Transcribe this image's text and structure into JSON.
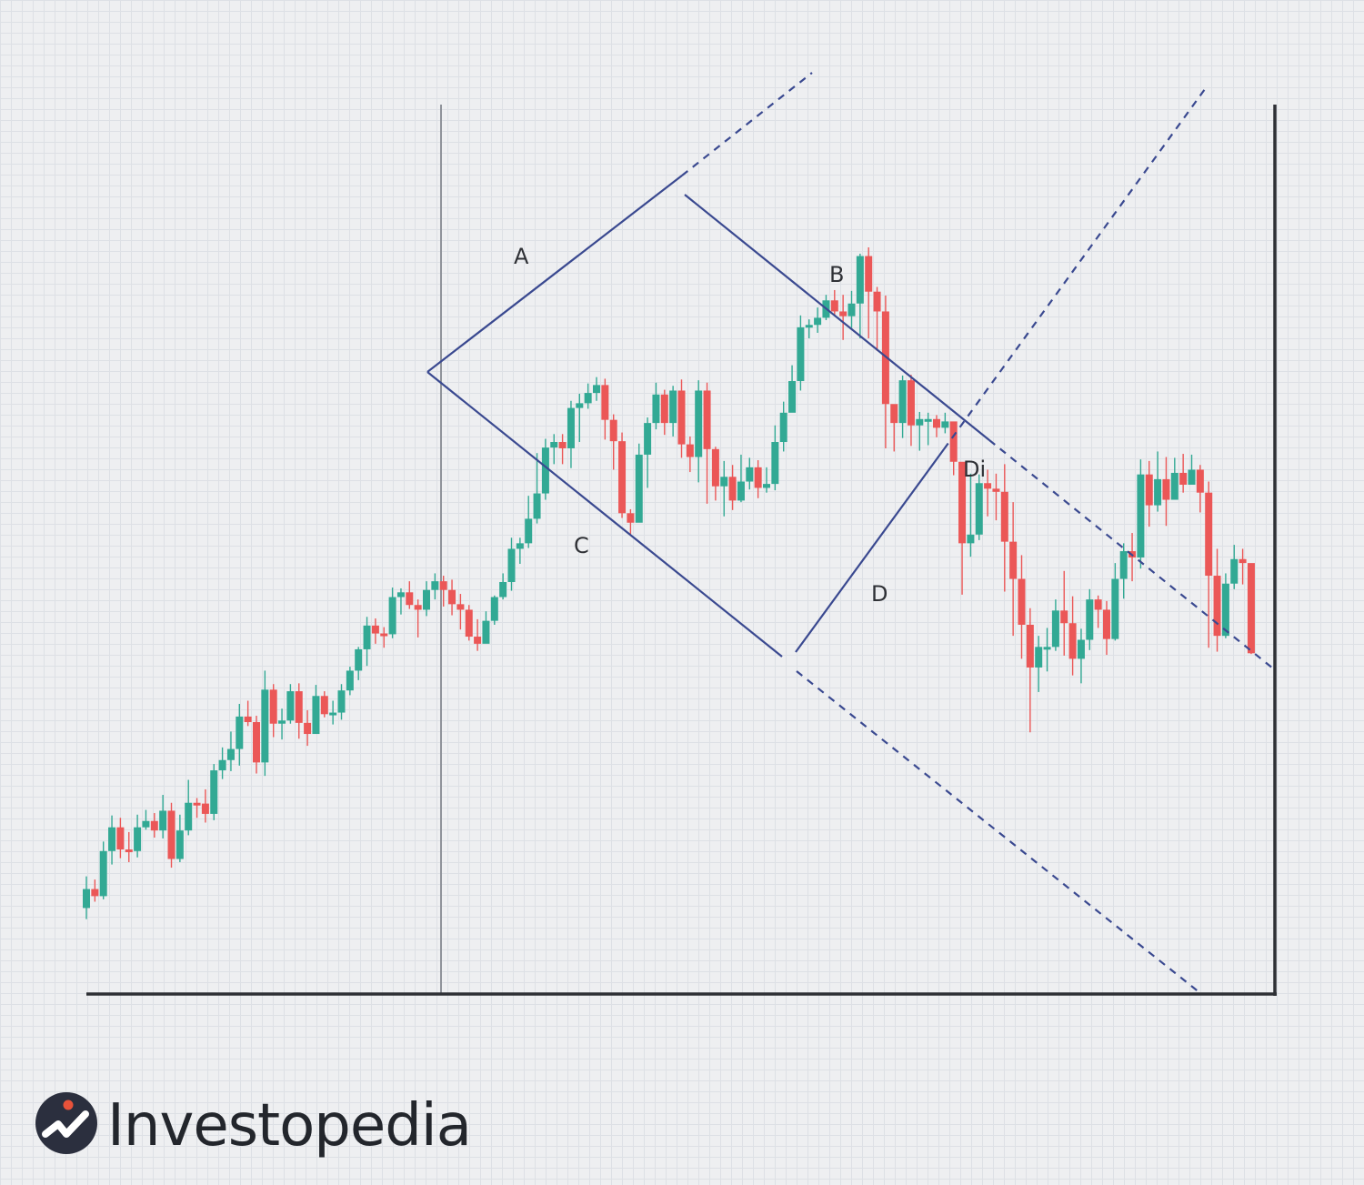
{
  "brand": {
    "name": "Investopedia",
    "logo_icon": "investopedia-logo-icon"
  },
  "colors": {
    "bullish": "#32a994",
    "bearish": "#eb5757",
    "pattern_lines": "#3a4990",
    "axes": "#2e3035",
    "divider": "#8f939a",
    "background": "#eeeff1",
    "grid": "#dde0e5"
  },
  "chart_data": {
    "type": "candlestick",
    "title": "",
    "xlabel": "",
    "ylabel": "",
    "grid": true,
    "candle_count": 108,
    "ylim": [
      0,
      100
    ],
    "candles": [
      [
        8.8,
        11.2,
        12.8,
        7.4
      ],
      [
        11.2,
        10.3,
        12.4,
        9.6
      ],
      [
        10.3,
        16.0,
        17.2,
        9.9
      ],
      [
        16.0,
        19.0,
        20.5,
        14.3
      ],
      [
        19.0,
        16.2,
        20.2,
        15.1
      ],
      [
        16.2,
        16.0,
        18.4,
        14.6
      ],
      [
        16.0,
        19.0,
        20.6,
        15.2
      ],
      [
        19.0,
        19.8,
        21.2,
        18.7
      ],
      [
        19.8,
        18.6,
        20.8,
        17.7
      ],
      [
        18.6,
        21.1,
        23.1,
        17.6
      ],
      [
        21.1,
        15.0,
        22.1,
        13.9
      ],
      [
        15.0,
        18.6,
        20.6,
        14.6
      ],
      [
        18.6,
        22.1,
        25.0,
        18.0
      ],
      [
        22.1,
        22.0,
        22.7,
        20.2
      ],
      [
        22.0,
        20.7,
        23.8,
        19.6
      ],
      [
        20.7,
        26.2,
        27.0,
        19.9
      ],
      [
        26.2,
        27.5,
        29.1,
        25.1
      ],
      [
        27.5,
        28.9,
        31.1,
        26.1
      ],
      [
        28.9,
        33.0,
        34.6,
        26.8
      ],
      [
        33.0,
        32.3,
        35.0,
        31.8
      ],
      [
        32.3,
        27.2,
        33.1,
        25.8
      ],
      [
        27.2,
        36.4,
        38.8,
        25.5
      ],
      [
        36.4,
        32.1,
        37.1,
        30.4
      ],
      [
        32.1,
        32.5,
        34.0,
        30.1
      ],
      [
        32.5,
        36.2,
        37.1,
        32.1
      ],
      [
        36.2,
        32.2,
        37.2,
        30.2
      ],
      [
        32.2,
        30.8,
        33.8,
        29.3
      ],
      [
        30.8,
        35.6,
        37.0,
        31.2
      ],
      [
        35.6,
        33.3,
        36.2,
        32.9
      ],
      [
        33.3,
        33.5,
        35.0,
        32.0
      ],
      [
        33.5,
        36.3,
        37.1,
        32.6
      ],
      [
        36.3,
        38.8,
        39.3,
        35.7
      ],
      [
        38.8,
        41.5,
        41.8,
        37.6
      ],
      [
        41.5,
        44.5,
        45.6,
        39.4
      ],
      [
        44.5,
        43.5,
        45.4,
        42.2
      ],
      [
        43.5,
        43.4,
        44.3,
        41.7
      ],
      [
        43.4,
        48.1,
        49.3,
        42.9
      ],
      [
        48.1,
        48.7,
        49.2,
        45.9
      ],
      [
        48.7,
        47.1,
        50.1,
        46.6
      ],
      [
        47.1,
        46.5,
        47.8,
        43.0
      ],
      [
        46.5,
        49.0,
        50.1,
        45.7
      ],
      [
        49.0,
        50.1,
        51.1,
        47.8
      ],
      [
        50.1,
        49.0,
        50.8,
        46.9
      ],
      [
        49.0,
        47.2,
        50.3,
        45.8
      ],
      [
        47.2,
        46.5,
        48.5,
        44.0
      ],
      [
        46.5,
        43.1,
        47.1,
        42.6
      ],
      [
        43.1,
        42.2,
        45.3,
        41.3
      ],
      [
        42.2,
        45.1,
        46.3,
        42.7
      ],
      [
        45.1,
        48.1,
        48.3,
        44.6
      ],
      [
        48.1,
        50.0,
        51.1,
        47.8
      ],
      [
        50.0,
        54.2,
        55.6,
        48.9
      ],
      [
        54.2,
        54.9,
        55.6,
        52.3
      ],
      [
        54.9,
        58.0,
        60.9,
        54.3
      ],
      [
        58.0,
        61.2,
        66.3,
        57.4
      ],
      [
        61.2,
        67.0,
        68.1,
        60.4
      ],
      [
        67.0,
        67.7,
        68.7,
        64.9
      ],
      [
        67.7,
        66.9,
        68.7,
        64.9
      ],
      [
        66.9,
        72.0,
        72.9,
        64.4
      ],
      [
        72.0,
        72.6,
        73.8,
        67.7
      ],
      [
        72.6,
        73.9,
        75.1,
        71.9
      ],
      [
        73.9,
        74.9,
        75.9,
        72.9
      ],
      [
        74.9,
        70.5,
        75.7,
        68.0
      ],
      [
        70.5,
        67.8,
        71.2,
        64.2
      ],
      [
        67.8,
        58.7,
        68.9,
        58.1
      ],
      [
        58.7,
        57.5,
        59.2,
        56.1
      ],
      [
        57.5,
        66.1,
        67.5,
        59.0
      ],
      [
        66.1,
        70.1,
        70.8,
        61.9
      ],
      [
        70.1,
        73.7,
        75.2,
        69.3
      ],
      [
        73.7,
        70.1,
        74.3,
        68.6
      ],
      [
        70.1,
        74.2,
        74.8,
        68.4
      ],
      [
        74.2,
        67.4,
        75.6,
        65.7
      ],
      [
        67.4,
        65.8,
        68.4,
        63.9
      ],
      [
        65.8,
        74.2,
        75.5,
        62.6
      ],
      [
        74.2,
        66.8,
        75.2,
        59.9
      ],
      [
        66.8,
        62.1,
        67.1,
        60.3
      ],
      [
        62.1,
        63.3,
        65.3,
        58.3
      ],
      [
        63.3,
        60.3,
        64.8,
        59.1
      ],
      [
        60.3,
        62.7,
        66.1,
        60.1
      ],
      [
        62.7,
        64.5,
        65.7,
        61.7
      ],
      [
        64.5,
        61.9,
        65.4,
        60.6
      ],
      [
        61.9,
        62.4,
        64.5,
        61.3
      ],
      [
        62.4,
        67.7,
        69.8,
        61.6
      ],
      [
        67.7,
        71.4,
        72.8,
        66.5
      ],
      [
        71.4,
        75.4,
        77.4,
        71.6
      ],
      [
        75.4,
        82.2,
        83.7,
        74.2
      ],
      [
        82.2,
        82.5,
        83.2,
        80.8
      ],
      [
        82.5,
        83.4,
        84.7,
        81.5
      ],
      [
        83.4,
        85.6,
        86.3,
        83.1
      ],
      [
        85.6,
        84.2,
        86.9,
        83.8
      ],
      [
        84.2,
        83.6,
        86.3,
        80.6
      ],
      [
        83.6,
        85.2,
        86.8,
        82.1
      ],
      [
        85.2,
        91.2,
        91.5,
        80.8
      ],
      [
        91.2,
        86.7,
        92.3,
        80.8
      ],
      [
        86.7,
        84.2,
        87.3,
        79.2
      ],
      [
        84.2,
        72.5,
        86.2,
        66.9
      ],
      [
        72.5,
        70.1,
        71.3,
        66.5
      ],
      [
        70.1,
        75.5,
        76.1,
        68.2
      ],
      [
        75.5,
        69.8,
        76.2,
        67.2
      ],
      [
        69.8,
        70.6,
        71.5,
        66.6
      ],
      [
        70.6,
        70.6,
        71.4,
        67.3
      ],
      [
        70.6,
        69.5,
        71.1,
        68.3
      ],
      [
        69.5,
        70.3,
        71.4,
        68.8
      ],
      [
        70.3,
        65.2,
        66.6,
        63.5
      ],
      [
        65.2,
        54.9,
        64.9,
        48.4
      ],
      [
        54.9,
        56.0,
        63.7,
        53.2
      ],
      [
        56.0,
        62.5,
        63.6,
        55.3
      ],
      [
        62.5,
        61.8,
        64.2,
        58.3
      ],
      [
        61.8,
        61.4,
        63.7,
        57.8
      ]
    ],
    "candles_right": [
      [
        61.4,
        55.1,
        64.9,
        48.8
      ],
      [
        55.1,
        50.4,
        60.1,
        43.2
      ],
      [
        50.4,
        44.6,
        53.4,
        40.3
      ],
      [
        44.6,
        39.2,
        46.7,
        31.0
      ],
      [
        39.2,
        41.8,
        43.2,
        36.1
      ],
      [
        41.8,
        41.8,
        44.2,
        38.7
      ],
      [
        41.8,
        46.4,
        47.8,
        41.3
      ],
      [
        46.4,
        44.8,
        51.4,
        40.7
      ],
      [
        44.8,
        40.3,
        48.2,
        38.2
      ],
      [
        40.3,
        42.7,
        44.1,
        37.2
      ],
      [
        42.7,
        47.8,
        49.1,
        41.4
      ],
      [
        47.8,
        46.5,
        48.3,
        44.2
      ],
      [
        46.5,
        42.8,
        47.6,
        40.8
      ],
      [
        42.8,
        50.4,
        52.4,
        42.6
      ],
      [
        50.4,
        53.9,
        54.9,
        47.9
      ],
      [
        53.9,
        53.1,
        56.2,
        50.1
      ],
      [
        53.1,
        63.6,
        65.5,
        51.7
      ],
      [
        63.6,
        59.7,
        65.3,
        57.0
      ],
      [
        59.7,
        63.0,
        66.5,
        58.9
      ],
      [
        63.0,
        60.4,
        65.8,
        57.1
      ],
      [
        60.4,
        63.8,
        65.7,
        62.5
      ],
      [
        63.8,
        62.3,
        66.2,
        61.3
      ],
      [
        62.3,
        64.2,
        66.1,
        63.7
      ],
      [
        64.2,
        61.3,
        64.8,
        58.8
      ],
      [
        61.3,
        50.8,
        62.7,
        41.7
      ],
      [
        50.8,
        43.2,
        54.2,
        41.2
      ],
      [
        43.2,
        49.8,
        51.1,
        42.9
      ],
      [
        49.8,
        52.9,
        54.7,
        49.1
      ],
      [
        52.9,
        52.4,
        54.2,
        49.7
      ],
      [
        52.4,
        41.0,
        52.3,
        40.9
      ]
    ],
    "annotations": [
      {
        "label": "A"
      },
      {
        "label": "B"
      },
      {
        "label": "C"
      },
      {
        "label": "D"
      },
      {
        "label": "Di"
      }
    ],
    "pattern": "diamond (A/B upper trendlines, C/D lower trendlines) with dashed extensions"
  }
}
